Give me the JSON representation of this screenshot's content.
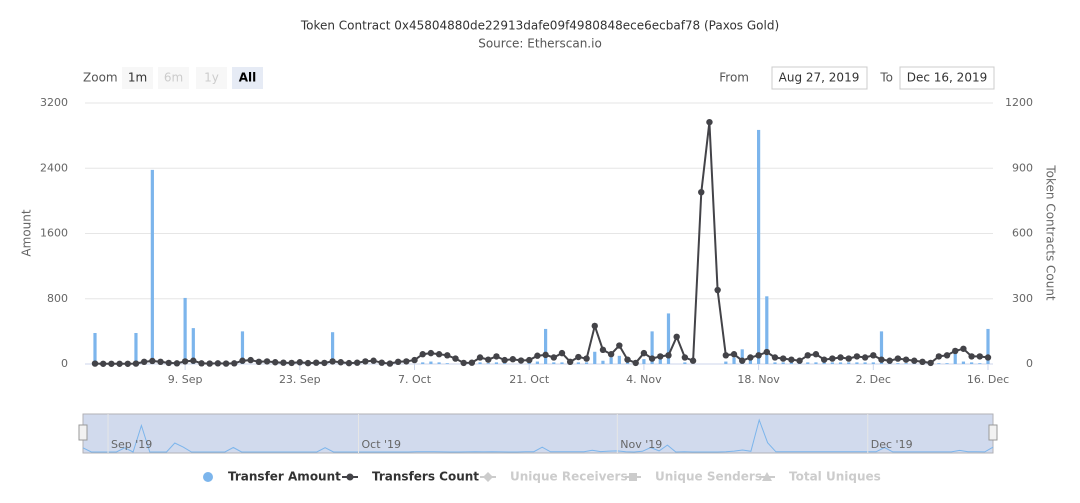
{
  "chart_data": {
    "type": "bar-line",
    "title": "Token Contract 0x45804880de22913dafe09f4980848ece6ecbaf78 (Paxos Gold)",
    "subtitle": "Source: Etherscan.io",
    "y_label": "Amount",
    "y2_label": "Token Contracts Count",
    "zoom": {
      "label": "Zoom",
      "buttons": [
        "1m",
        "6m",
        "1y",
        "All"
      ],
      "active": "All"
    },
    "range": {
      "from_label": "From",
      "from": "Aug 27, 2019",
      "to_label": "To",
      "to": "Dec 16, 2019"
    },
    "x": [
      "2019-08-29",
      "2019-08-30",
      "2019-08-31",
      "2019-09-01",
      "2019-09-02",
      "2019-09-03",
      "2019-09-04",
      "2019-09-05",
      "2019-09-06",
      "2019-09-07",
      "2019-09-08",
      "2019-09-09",
      "2019-09-10",
      "2019-09-11",
      "2019-09-12",
      "2019-09-13",
      "2019-09-14",
      "2019-09-15",
      "2019-09-16",
      "2019-09-17",
      "2019-09-18",
      "2019-09-19",
      "2019-09-20",
      "2019-09-21",
      "2019-09-22",
      "2019-09-23",
      "2019-09-24",
      "2019-09-25",
      "2019-09-26",
      "2019-09-27",
      "2019-09-28",
      "2019-09-29",
      "2019-09-30",
      "2019-10-01",
      "2019-10-02",
      "2019-10-03",
      "2019-10-04",
      "2019-10-05",
      "2019-10-06",
      "2019-10-07",
      "2019-10-08",
      "2019-10-09",
      "2019-10-10",
      "2019-10-11",
      "2019-10-12",
      "2019-10-13",
      "2019-10-14",
      "2019-10-15",
      "2019-10-16",
      "2019-10-17",
      "2019-10-18",
      "2019-10-19",
      "2019-10-20",
      "2019-10-21",
      "2019-10-22",
      "2019-10-23",
      "2019-10-24",
      "2019-10-25",
      "2019-10-26",
      "2019-10-27",
      "2019-10-28",
      "2019-10-29",
      "2019-10-30",
      "2019-10-31",
      "2019-11-01",
      "2019-11-02",
      "2019-11-03",
      "2019-11-04",
      "2019-11-05",
      "2019-11-06",
      "2019-11-07",
      "2019-11-08",
      "2019-11-09",
      "2019-11-10",
      "2019-11-11",
      "2019-11-12",
      "2019-11-13",
      "2019-11-14",
      "2019-11-15",
      "2019-11-16",
      "2019-11-17",
      "2019-11-18",
      "2019-11-19",
      "2019-11-20",
      "2019-11-21",
      "2019-11-22",
      "2019-11-23",
      "2019-11-24",
      "2019-11-25",
      "2019-11-26",
      "2019-11-27",
      "2019-11-28",
      "2019-11-29",
      "2019-11-30",
      "2019-12-01",
      "2019-12-02",
      "2019-12-03",
      "2019-12-04",
      "2019-12-05",
      "2019-12-06",
      "2019-12-07",
      "2019-12-08",
      "2019-12-09",
      "2019-12-10",
      "2019-12-11",
      "2019-12-12",
      "2019-12-13",
      "2019-12-14",
      "2019-12-15",
      "2019-12-16"
    ],
    "xlim": [
      "2019-08-29",
      "2019-12-16"
    ],
    "xticks": [
      {
        "value": "2019-09-09",
        "label": "9. Sep"
      },
      {
        "value": "2019-09-23",
        "label": "23. Sep"
      },
      {
        "value": "2019-10-07",
        "label": "7. Oct"
      },
      {
        "value": "2019-10-21",
        "label": "21. Oct"
      },
      {
        "value": "2019-11-04",
        "label": "4. Nov"
      },
      {
        "value": "2019-11-18",
        "label": "18. Nov"
      },
      {
        "value": "2019-12-02",
        "label": "2. Dec"
      },
      {
        "value": "2019-12-16",
        "label": "16. Dec"
      }
    ],
    "ylim": [
      0,
      3200
    ],
    "yticks": [
      0,
      800,
      1600,
      2400,
      3200
    ],
    "y2lim": [
      0,
      1200
    ],
    "y2ticks": [
      0,
      300,
      600,
      900,
      1200
    ],
    "grid": true,
    "series": [
      {
        "name": "Transfer Amount",
        "type": "bar",
        "color": "#7cb5ec",
        "values": [
          380,
          0,
          0,
          0,
          0,
          380,
          0,
          2380,
          0,
          0,
          0,
          810,
          440,
          0,
          0,
          0,
          0,
          0,
          400,
          0,
          0,
          0,
          0,
          0,
          0,
          0,
          0,
          0,
          0,
          390,
          0,
          0,
          0,
          0,
          0,
          0,
          0,
          0,
          0,
          0,
          20,
          30,
          20,
          10,
          0,
          0,
          10,
          20,
          10,
          20,
          10,
          0,
          0,
          20,
          30,
          430,
          20,
          20,
          20,
          20,
          20,
          150,
          40,
          80,
          100,
          30,
          0,
          60,
          400,
          100,
          620,
          0,
          20,
          0,
          0,
          0,
          0,
          30,
          80,
          180,
          60,
          2870,
          830,
          20,
          20,
          20,
          20,
          20,
          20,
          20,
          20,
          20,
          20,
          20,
          20,
          20,
          400,
          10,
          10,
          10,
          10,
          10,
          10,
          10,
          10,
          140,
          30,
          20,
          10,
          430
        ]
      },
      {
        "name": "Transfers Count",
        "type": "line",
        "axis": "y2",
        "color": "#434348",
        "values": [
          2,
          1,
          1,
          1,
          1,
          2,
          10,
          14,
          10,
          5,
          3,
          12,
          15,
          3,
          2,
          3,
          2,
          3,
          15,
          18,
          10,
          12,
          8,
          6,
          5,
          8,
          4,
          6,
          5,
          12,
          8,
          4,
          6,
          12,
          15,
          6,
          2,
          10,
          12,
          18,
          45,
          50,
          45,
          40,
          25,
          5,
          6,
          30,
          20,
          35,
          18,
          22,
          16,
          18,
          38,
          42,
          30,
          50,
          10,
          32,
          25,
          175,
          65,
          45,
          85,
          20,
          5,
          50,
          25,
          35,
          40,
          125,
          30,
          15,
          790,
          1112,
          340,
          40,
          45,
          15,
          30,
          40,
          55,
          30,
          25,
          20,
          15,
          40,
          45,
          20,
          25,
          30,
          25,
          35,
          30,
          40,
          20,
          15,
          25,
          20,
          15,
          10,
          5,
          35,
          40,
          60,
          70,
          35,
          35,
          30
        ]
      },
      {
        "name": "Unique Receivers",
        "type": "line",
        "color": "#cccccc",
        "visible": false
      },
      {
        "name": "Unique Senders",
        "type": "line",
        "color": "#cccccc",
        "visible": false
      },
      {
        "name": "Total Uniques",
        "type": "line",
        "color": "#cccccc",
        "visible": false
      }
    ],
    "navigator": {
      "ticks": [
        {
          "value": "2019-09-01",
          "label": "Sep '19"
        },
        {
          "value": "2019-10-01",
          "label": "Oct '19"
        },
        {
          "value": "2019-11-01",
          "label": "Nov '19"
        },
        {
          "value": "2019-12-01",
          "label": "Dec '19"
        }
      ]
    }
  }
}
